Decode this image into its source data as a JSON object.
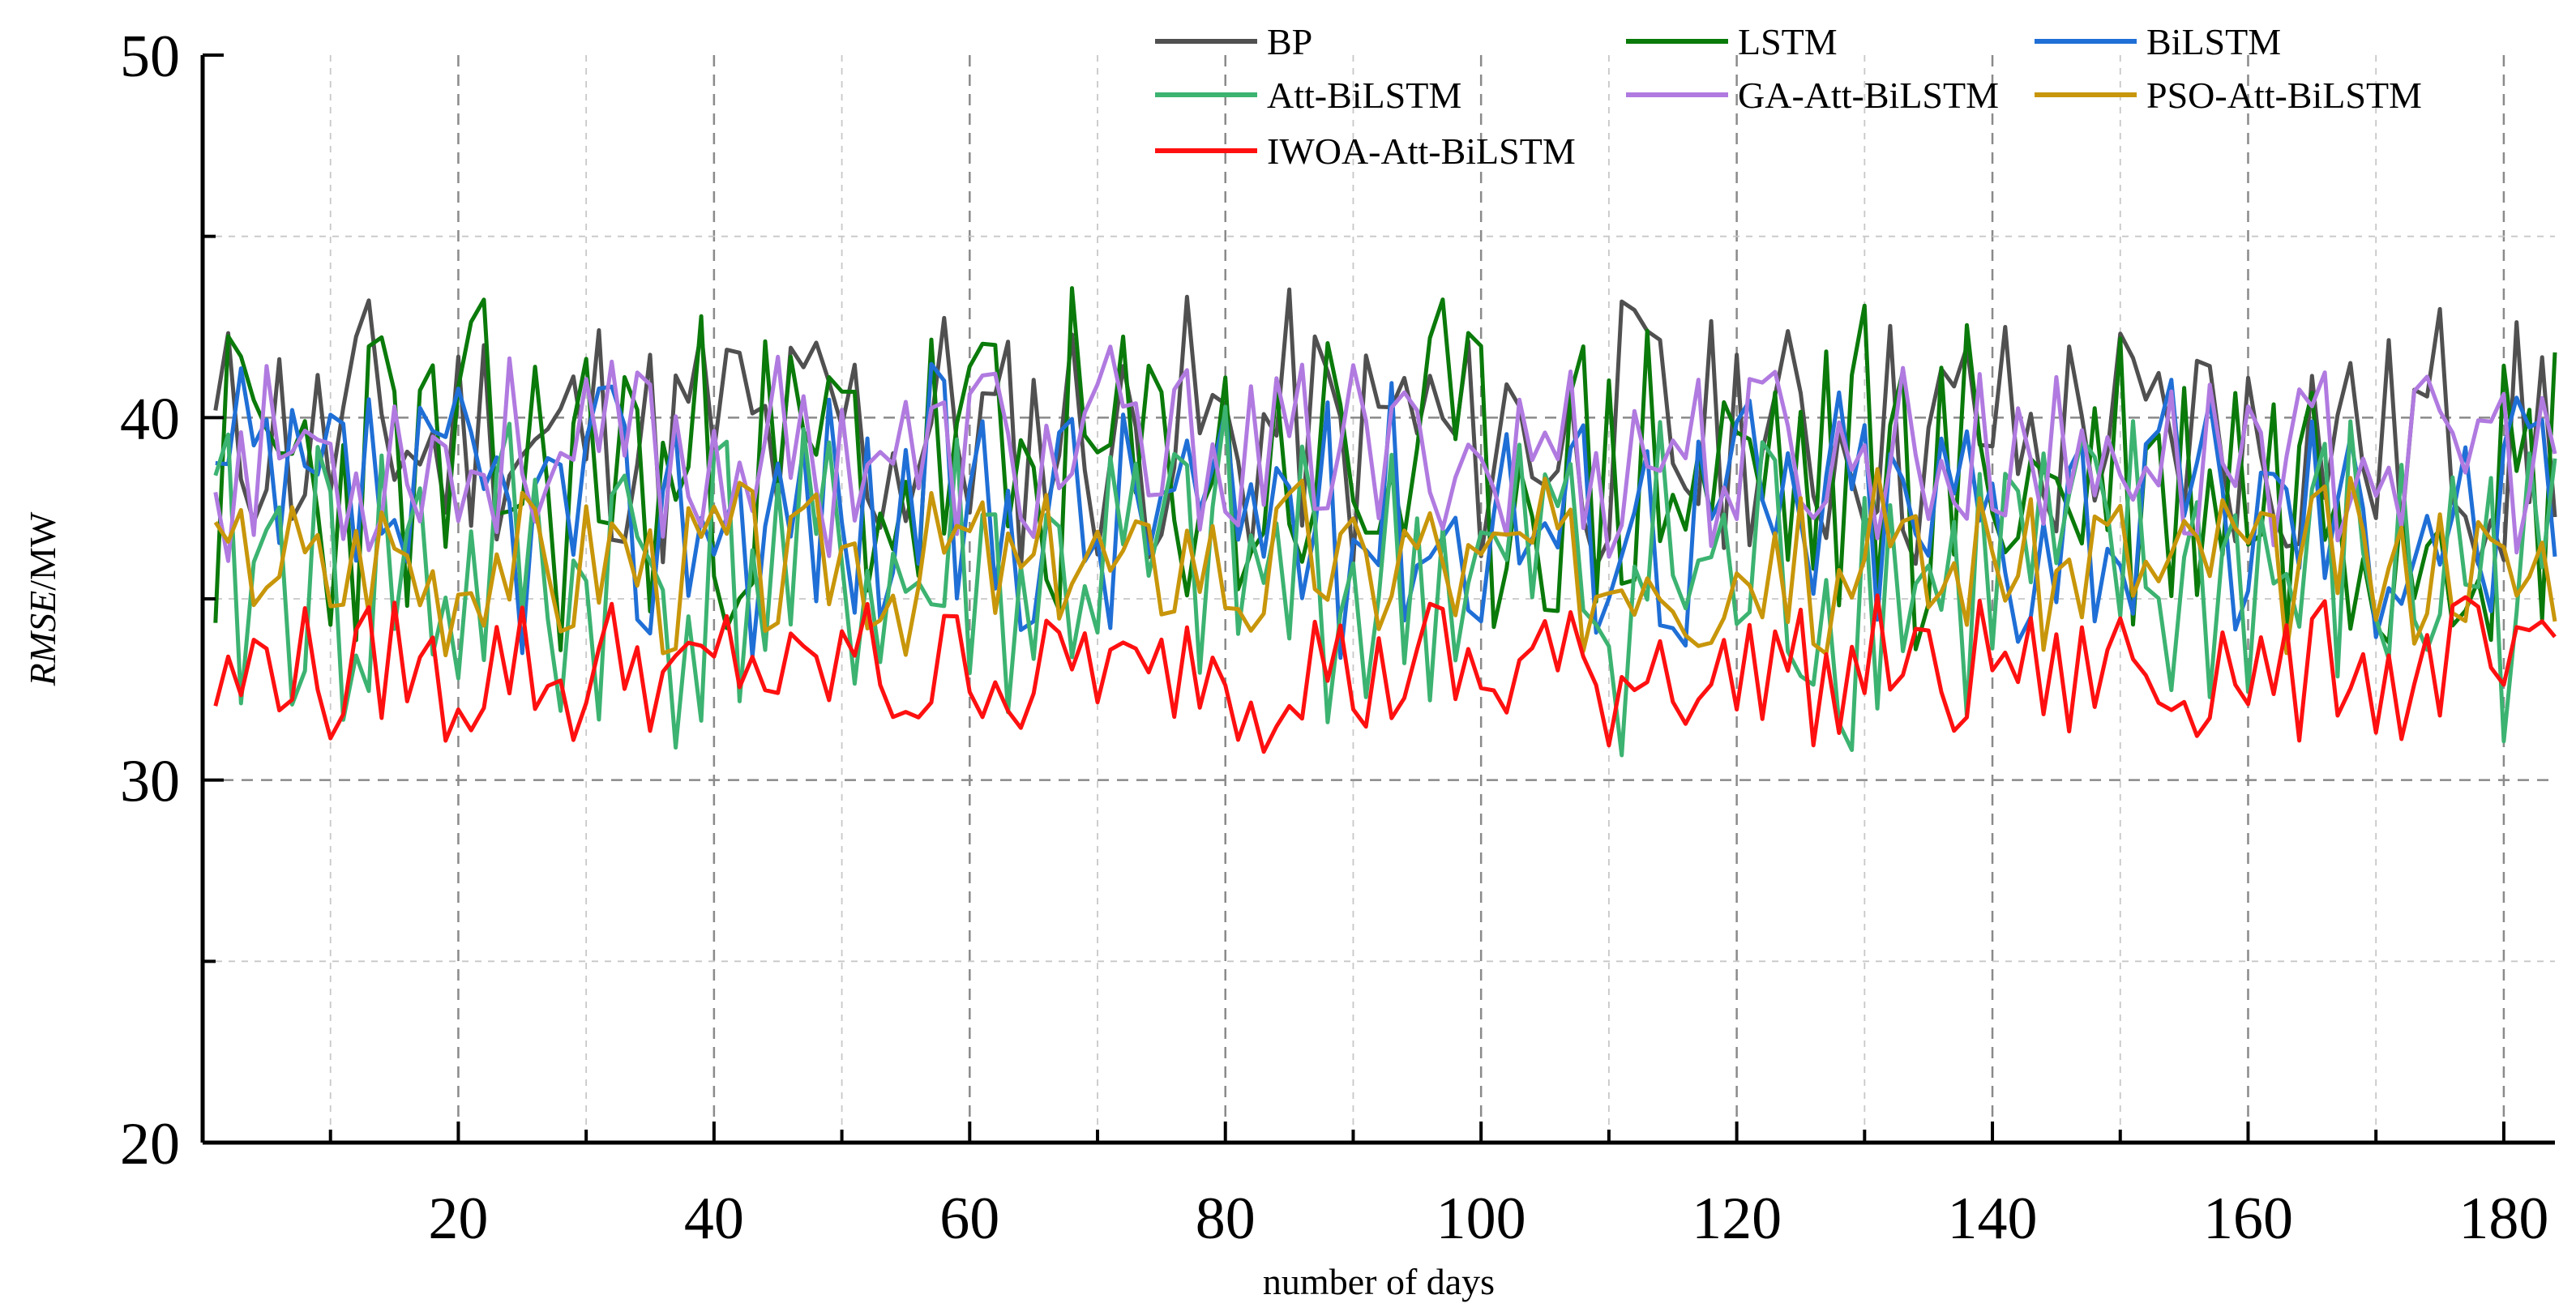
{
  "chart_data": {
    "type": "line",
    "title": "",
    "xlabel": "number of days",
    "ylabel_italic": "RMSE",
    "ylabel_unit": "/MW",
    "xlim": [
      0,
      184
    ],
    "ylim": [
      20,
      50
    ],
    "xticks": [
      20,
      40,
      60,
      80,
      100,
      120,
      140,
      160,
      180
    ],
    "yticks": [
      20,
      30,
      40,
      50
    ],
    "grid": true,
    "legend_position": "top-right",
    "series": [
      {
        "name": "BP",
        "color": "#505050",
        "mean": 39.5,
        "amp": 3.6,
        "seed": 11
      },
      {
        "name": "LSTM",
        "color": "#0a7a0a",
        "mean": 38.4,
        "amp": 4.8,
        "seed": 23
      },
      {
        "name": "BiLSTM",
        "color": "#1f6fd6",
        "mean": 37.4,
        "amp": 3.6,
        "seed": 37
      },
      {
        "name": "Att-BiLSTM",
        "color": "#3cb371",
        "mean": 35.6,
        "amp": 4.6,
        "seed": 41
      },
      {
        "name": "GA-Att-BiLSTM",
        "color": "#b07ae0",
        "mean": 39.0,
        "amp": 2.6,
        "seed": 53
      },
      {
        "name": "PSO-Att-BiLSTM",
        "color": "#c8960a",
        "mean": 36.0,
        "amp": 2.1,
        "seed": 67
      },
      {
        "name": "IWOA-Att-BiLSTM",
        "color": "#ff1010",
        "mean": 33.0,
        "amp": 1.8,
        "seed": 79
      }
    ]
  }
}
